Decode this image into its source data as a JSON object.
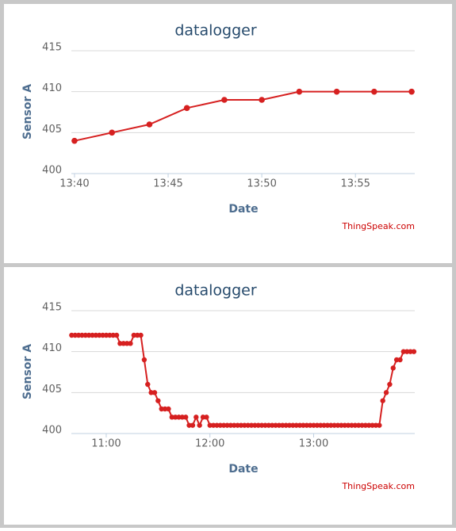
{
  "chart_data": [
    {
      "type": "line",
      "title": "datalogger",
      "y_label": "Sensor A",
      "x_label": "Date",
      "credit": "ThingSpeak.com",
      "color": "#d62020",
      "x": [
        "13:40",
        "13:42",
        "13:44",
        "13:46",
        "13:48",
        "13:50",
        "13:52",
        "13:54",
        "13:56",
        "13:58"
      ],
      "values": [
        404,
        405,
        406,
        408,
        409,
        409,
        410,
        410,
        410,
        410
      ],
      "xlim": [
        "13:39:50",
        "13:58:10"
      ],
      "xticks": [
        "13:40",
        "13:45",
        "13:50",
        "13:55"
      ],
      "ylim": [
        400,
        415
      ],
      "yticks": [
        400,
        405,
        410,
        415
      ],
      "grid": true
    },
    {
      "type": "line",
      "title": "datalogger",
      "y_label": "Sensor A",
      "x_label": "Date",
      "credit": "ThingSpeak.com",
      "color": "#d62020",
      "x": [
        "10:40",
        "10:42",
        "10:44",
        "10:46",
        "10:48",
        "10:50",
        "10:52",
        "10:54",
        "10:56",
        "10:58",
        "11:00",
        "11:02",
        "11:04",
        "11:06",
        "11:08",
        "11:10",
        "11:12",
        "11:14",
        "11:16",
        "11:18",
        "11:20",
        "11:22",
        "11:24",
        "11:26",
        "11:28",
        "11:30",
        "11:32",
        "11:34",
        "11:36",
        "11:38",
        "11:40",
        "11:42",
        "11:44",
        "11:46",
        "11:48",
        "11:50",
        "11:52",
        "11:54",
        "11:56",
        "11:58",
        "12:00",
        "12:02",
        "12:04",
        "12:06",
        "12:08",
        "12:10",
        "12:12",
        "12:14",
        "12:16",
        "12:18",
        "12:20",
        "12:22",
        "12:24",
        "12:26",
        "12:28",
        "12:30",
        "12:32",
        "12:34",
        "12:36",
        "12:38",
        "12:40",
        "12:42",
        "12:44",
        "12:46",
        "12:48",
        "12:50",
        "12:52",
        "12:54",
        "12:56",
        "12:58",
        "13:00",
        "13:02",
        "13:04",
        "13:06",
        "13:08",
        "13:10",
        "13:12",
        "13:14",
        "13:16",
        "13:18",
        "13:20",
        "13:22",
        "13:24",
        "13:26",
        "13:28",
        "13:30",
        "13:32",
        "13:34",
        "13:36",
        "13:38",
        "13:40",
        "13:42",
        "13:44",
        "13:46",
        "13:48",
        "13:50",
        "13:52",
        "13:54",
        "13:56",
        "13:58"
      ],
      "values": [
        412,
        412,
        412,
        412,
        412,
        412,
        412,
        412,
        412,
        412,
        412,
        412,
        412,
        412,
        411,
        411,
        411,
        411,
        412,
        412,
        412,
        409,
        406,
        405,
        405,
        404,
        403,
        403,
        403,
        402,
        402,
        402,
        402,
        402,
        401,
        401,
        402,
        401,
        402,
        402,
        401,
        401,
        401,
        401,
        401,
        401,
        401,
        401,
        401,
        401,
        401,
        401,
        401,
        401,
        401,
        401,
        401,
        401,
        401,
        401,
        401,
        401,
        401,
        401,
        401,
        401,
        401,
        401,
        401,
        401,
        401,
        401,
        401,
        401,
        401,
        401,
        401,
        401,
        401,
        401,
        401,
        401,
        401,
        401,
        401,
        401,
        401,
        401,
        401,
        401,
        404,
        405,
        406,
        408,
        409,
        409,
        410,
        410,
        410,
        410
      ],
      "xlim": [
        "10:39:50",
        "13:58:30"
      ],
      "xticks": [
        "11:00",
        "12:00",
        "13:00"
      ],
      "ylim": [
        400,
        415
      ],
      "yticks": [
        400,
        405,
        410,
        415
      ],
      "grid": true
    }
  ]
}
